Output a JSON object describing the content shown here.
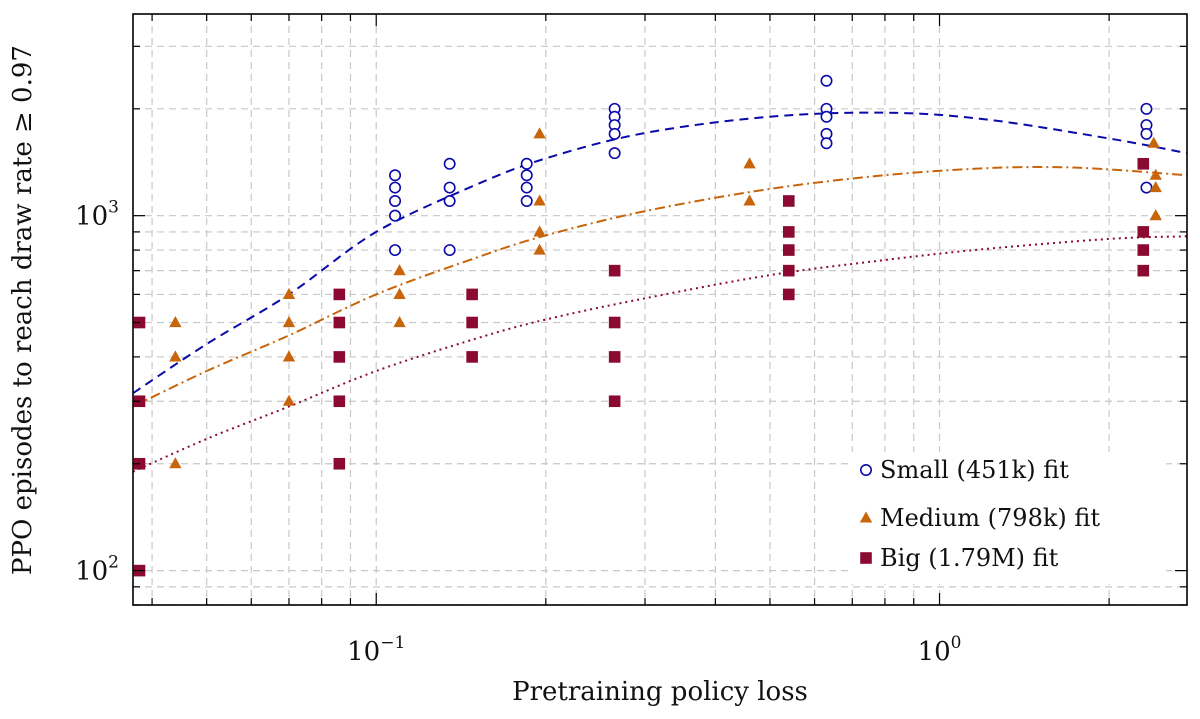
{
  "chart_data": {
    "type": "scatter",
    "xscale": "log",
    "yscale": "log",
    "xlim": [
      0.037,
      2.75
    ],
    "ylim": [
      80,
      3700
    ],
    "xlabel": "Pretraining policy loss",
    "ylabel": "PPO episodes to reach draw rate ≥ 0.97",
    "grid": true,
    "legend_position": "bottom-right",
    "x_ticks": [
      {
        "value": 0.1,
        "base": "10",
        "exp": "−1"
      },
      {
        "value": 1,
        "base": "10",
        "exp": "0"
      }
    ],
    "y_ticks": [
      {
        "value": 100,
        "base": "10",
        "exp": "2"
      },
      {
        "value": 1000,
        "base": "10",
        "exp": "3"
      }
    ],
    "series": [
      {
        "name": "Small (451k) fit",
        "marker": "circle-open",
        "color": "#0a0aaa",
        "points": [
          [
            0.108,
            1300
          ],
          [
            0.108,
            1200
          ],
          [
            0.108,
            1100
          ],
          [
            0.108,
            1000
          ],
          [
            0.108,
            800
          ],
          [
            0.135,
            1400
          ],
          [
            0.135,
            1200
          ],
          [
            0.135,
            1100
          ],
          [
            0.135,
            800
          ],
          [
            0.185,
            1400
          ],
          [
            0.185,
            1300
          ],
          [
            0.185,
            1200
          ],
          [
            0.185,
            1100
          ],
          [
            0.265,
            2000
          ],
          [
            0.265,
            1900
          ],
          [
            0.265,
            1800
          ],
          [
            0.265,
            1700
          ],
          [
            0.265,
            1500
          ],
          [
            0.63,
            2400
          ],
          [
            0.63,
            2000
          ],
          [
            0.63,
            1900
          ],
          [
            0.63,
            1700
          ],
          [
            0.63,
            1600
          ],
          [
            2.33,
            2000
          ],
          [
            2.33,
            1800
          ],
          [
            2.33,
            1700
          ],
          [
            2.33,
            1200
          ]
        ],
        "fit": [
          [
            0.037,
            316
          ],
          [
            0.05,
            435
          ],
          [
            0.07,
            600
          ],
          [
            0.1,
            900
          ],
          [
            0.15,
            1220
          ],
          [
            0.2,
            1450
          ],
          [
            0.3,
            1710
          ],
          [
            0.5,
            1900
          ],
          [
            0.8,
            1950
          ],
          [
            1.2,
            1870
          ],
          [
            2.0,
            1650
          ],
          [
            2.75,
            1500
          ]
        ]
      },
      {
        "name": "Medium (798k) fit",
        "marker": "triangle",
        "color": "#c8640a",
        "points": [
          [
            0.044,
            500
          ],
          [
            0.044,
            400
          ],
          [
            0.044,
            200
          ],
          [
            0.07,
            600
          ],
          [
            0.07,
            500
          ],
          [
            0.07,
            400
          ],
          [
            0.07,
            300
          ],
          [
            0.11,
            700
          ],
          [
            0.11,
            600
          ],
          [
            0.11,
            500
          ],
          [
            0.195,
            1700
          ],
          [
            0.195,
            1100
          ],
          [
            0.195,
            900
          ],
          [
            0.195,
            800
          ],
          [
            0.46,
            1400
          ],
          [
            0.46,
            1100
          ],
          [
            2.4,
            1600
          ],
          [
            2.42,
            1300
          ],
          [
            2.42,
            1200
          ],
          [
            2.42,
            1000
          ]
        ],
        "fit": [
          [
            0.037,
            290
          ],
          [
            0.05,
            365
          ],
          [
            0.07,
            460
          ],
          [
            0.1,
            600
          ],
          [
            0.15,
            760
          ],
          [
            0.2,
            880
          ],
          [
            0.3,
            1030
          ],
          [
            0.5,
            1190
          ],
          [
            0.8,
            1300
          ],
          [
            1.2,
            1360
          ],
          [
            1.6,
            1370
          ],
          [
            2.0,
            1350
          ],
          [
            2.75,
            1300
          ]
        ]
      },
      {
        "name": "Big (1.79M) fit",
        "marker": "square",
        "color": "#8b0a32",
        "points": [
          [
            0.038,
            500
          ],
          [
            0.038,
            300
          ],
          [
            0.038,
            200
          ],
          [
            0.038,
            100
          ],
          [
            0.086,
            600
          ],
          [
            0.086,
            500
          ],
          [
            0.086,
            400
          ],
          [
            0.086,
            300
          ],
          [
            0.086,
            200
          ],
          [
            0.148,
            600
          ],
          [
            0.148,
            500
          ],
          [
            0.148,
            400
          ],
          [
            0.265,
            700
          ],
          [
            0.265,
            500
          ],
          [
            0.265,
            400
          ],
          [
            0.265,
            300
          ],
          [
            0.54,
            1100
          ],
          [
            0.54,
            900
          ],
          [
            0.54,
            800
          ],
          [
            0.54,
            700
          ],
          [
            0.54,
            600
          ],
          [
            2.3,
            1400
          ],
          [
            2.3,
            900
          ],
          [
            2.3,
            800
          ],
          [
            2.3,
            700
          ]
        ],
        "fit": [
          [
            0.037,
            190
          ],
          [
            0.05,
            235
          ],
          [
            0.07,
            290
          ],
          [
            0.1,
            365
          ],
          [
            0.15,
            450
          ],
          [
            0.2,
            510
          ],
          [
            0.3,
            585
          ],
          [
            0.5,
            680
          ],
          [
            0.8,
            750
          ],
          [
            1.2,
            805
          ],
          [
            2.0,
            860
          ],
          [
            2.75,
            875
          ]
        ]
      }
    ]
  }
}
